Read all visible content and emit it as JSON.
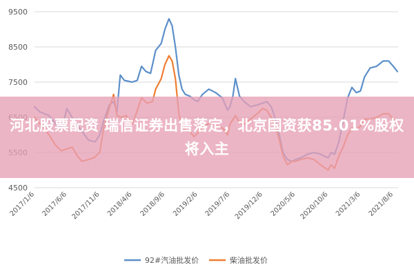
{
  "overlay": {
    "headline": "河北股票配资 瑞信证券出售落定，北京国资获85.01%股权将入主"
  },
  "chart_data": {
    "type": "line",
    "ylim": [
      4500,
      9500
    ],
    "y_ticks": [
      4500,
      5500,
      6500,
      7500,
      8500,
      9500
    ],
    "x_tick_labels": [
      "2017/1/6",
      "2017/6/6",
      "2017/11/6",
      "2018/4/6",
      "2018/9/6",
      "2019/2/6",
      "2019/7/6",
      "2019/12/6",
      "2020/5/6",
      "2020/10/6",
      "2021/3/6",
      "2021/8/6"
    ],
    "x_tick_times": [
      "2017-01-06",
      "2017-06-06",
      "2017-11-06",
      "2018-04-06",
      "2018-09-06",
      "2019-02-06",
      "2019-07-06",
      "2019-12-06",
      "2020-05-06",
      "2020-10-06",
      "2021-03-06",
      "2021-08-06"
    ],
    "grid": "horizontal",
    "legend_position": "bottom",
    "series": [
      {
        "name": "92#汽油批发价",
        "color": "#5b8fc9",
        "points": [
          [
            "2017-01-06",
            6800
          ],
          [
            "2017-02-01",
            6650
          ],
          [
            "2017-03-15",
            6550
          ],
          [
            "2017-04-15",
            6300
          ],
          [
            "2017-05-15",
            6200
          ],
          [
            "2017-06-06",
            6750
          ],
          [
            "2017-07-10",
            6400
          ],
          [
            "2017-08-15",
            6100
          ],
          [
            "2017-09-15",
            5850
          ],
          [
            "2017-10-15",
            5800
          ],
          [
            "2017-11-06",
            6000
          ],
          [
            "2017-11-25",
            6400
          ],
          [
            "2017-12-20",
            6850
          ],
          [
            "2018-01-10",
            6950
          ],
          [
            "2018-01-25",
            6650
          ],
          [
            "2018-02-10",
            7700
          ],
          [
            "2018-03-01",
            7550
          ],
          [
            "2018-04-06",
            7500
          ],
          [
            "2018-04-30",
            7550
          ],
          [
            "2018-05-20",
            7950
          ],
          [
            "2018-06-10",
            7800
          ],
          [
            "2018-07-01",
            7750
          ],
          [
            "2018-07-25",
            8400
          ],
          [
            "2018-08-20",
            8600
          ],
          [
            "2018-09-06",
            9000
          ],
          [
            "2018-09-25",
            9300
          ],
          [
            "2018-10-10",
            9100
          ],
          [
            "2018-10-25",
            8500
          ],
          [
            "2018-11-10",
            7700
          ],
          [
            "2018-11-25",
            7300
          ],
          [
            "2018-12-10",
            7150
          ],
          [
            "2019-01-01",
            7100
          ],
          [
            "2019-01-20",
            7000
          ],
          [
            "2019-02-06",
            6950
          ],
          [
            "2019-02-28",
            7150
          ],
          [
            "2019-03-30",
            7300
          ],
          [
            "2019-05-01",
            7200
          ],
          [
            "2019-06-01",
            7050
          ],
          [
            "2019-06-25",
            6700
          ],
          [
            "2019-07-06",
            6800
          ],
          [
            "2019-07-20",
            7100
          ],
          [
            "2019-08-01",
            7600
          ],
          [
            "2019-08-20",
            7100
          ],
          [
            "2019-09-10",
            6950
          ],
          [
            "2019-10-10",
            6800
          ],
          [
            "2019-11-10",
            6850
          ],
          [
            "2019-12-06",
            6900
          ],
          [
            "2019-12-25",
            6950
          ],
          [
            "2020-01-15",
            6800
          ],
          [
            "2020-02-01",
            6500
          ],
          [
            "2020-02-20",
            6050
          ],
          [
            "2020-03-10",
            5500
          ],
          [
            "2020-03-30",
            5300
          ],
          [
            "2020-04-20",
            5250
          ],
          [
            "2020-05-06",
            5300
          ],
          [
            "2020-06-01",
            5350
          ],
          [
            "2020-07-01",
            5450
          ],
          [
            "2020-08-01",
            5500
          ],
          [
            "2020-09-01",
            5450
          ],
          [
            "2020-10-06",
            5350
          ],
          [
            "2020-10-20",
            5500
          ],
          [
            "2020-11-05",
            5450
          ],
          [
            "2020-11-25",
            5800
          ],
          [
            "2020-12-15",
            6400
          ],
          [
            "2021-01-05",
            7050
          ],
          [
            "2021-01-25",
            7350
          ],
          [
            "2021-02-15",
            7200
          ],
          [
            "2021-03-06",
            7250
          ],
          [
            "2021-03-25",
            7650
          ],
          [
            "2021-04-20",
            7900
          ],
          [
            "2021-05-20",
            7950
          ],
          [
            "2021-06-20",
            8100
          ],
          [
            "2021-07-15",
            8100
          ],
          [
            "2021-08-06",
            7950
          ],
          [
            "2021-08-25",
            7800
          ]
        ]
      },
      {
        "name": "柴油批发价",
        "color": "#ef7d31",
        "points": [
          [
            "2017-01-06",
            6500
          ],
          [
            "2017-02-10",
            6250
          ],
          [
            "2017-03-15",
            6000
          ],
          [
            "2017-04-15",
            5700
          ],
          [
            "2017-05-10",
            5550
          ],
          [
            "2017-06-06",
            5600
          ],
          [
            "2017-07-01",
            5650
          ],
          [
            "2017-07-25",
            5400
          ],
          [
            "2017-08-15",
            5250
          ],
          [
            "2017-09-15",
            5300
          ],
          [
            "2017-10-10",
            5350
          ],
          [
            "2017-11-06",
            5500
          ],
          [
            "2017-11-25",
            6200
          ],
          [
            "2017-12-20",
            6750
          ],
          [
            "2018-01-10",
            7150
          ],
          [
            "2018-01-25",
            6550
          ],
          [
            "2018-02-15",
            6500
          ],
          [
            "2018-03-10",
            6550
          ],
          [
            "2018-04-06",
            6300
          ],
          [
            "2018-04-25",
            6600
          ],
          [
            "2018-05-20",
            7050
          ],
          [
            "2018-06-15",
            6900
          ],
          [
            "2018-07-10",
            6950
          ],
          [
            "2018-07-25",
            7300
          ],
          [
            "2018-08-20",
            7600
          ],
          [
            "2018-09-06",
            8000
          ],
          [
            "2018-09-25",
            8250
          ],
          [
            "2018-10-10",
            8100
          ],
          [
            "2018-10-25",
            7600
          ],
          [
            "2018-11-10",
            6600
          ],
          [
            "2018-11-25",
            6200
          ],
          [
            "2018-12-10",
            6150
          ],
          [
            "2019-01-01",
            6100
          ],
          [
            "2019-01-20",
            5950
          ],
          [
            "2019-02-06",
            6050
          ],
          [
            "2019-03-05",
            6250
          ],
          [
            "2019-04-10",
            6350
          ],
          [
            "2019-05-10",
            6250
          ],
          [
            "2019-06-01",
            6200
          ],
          [
            "2019-06-25",
            6000
          ],
          [
            "2019-07-06",
            6300
          ],
          [
            "2019-08-01",
            6550
          ],
          [
            "2019-08-20",
            6350
          ],
          [
            "2019-09-10",
            6300
          ],
          [
            "2019-10-10",
            6450
          ],
          [
            "2019-11-10",
            6600
          ],
          [
            "2019-12-06",
            6750
          ],
          [
            "2019-12-25",
            6700
          ],
          [
            "2020-01-15",
            6500
          ],
          [
            "2020-02-05",
            6200
          ],
          [
            "2020-02-20",
            5900
          ],
          [
            "2020-03-10",
            5400
          ],
          [
            "2020-03-30",
            5150
          ],
          [
            "2020-04-20",
            5250
          ],
          [
            "2020-05-06",
            5250
          ],
          [
            "2020-06-01",
            5300
          ],
          [
            "2020-07-01",
            5350
          ],
          [
            "2020-08-01",
            5300
          ],
          [
            "2020-09-01",
            5150
          ],
          [
            "2020-10-06",
            5000
          ],
          [
            "2020-10-20",
            5150
          ],
          [
            "2020-11-05",
            5050
          ],
          [
            "2020-11-25",
            5400
          ],
          [
            "2020-12-15",
            5650
          ],
          [
            "2021-01-05",
            6000
          ],
          [
            "2021-01-25",
            6200
          ],
          [
            "2021-02-15",
            6150
          ],
          [
            "2021-03-06",
            6250
          ],
          [
            "2021-03-25",
            6450
          ],
          [
            "2021-04-20",
            6450
          ],
          [
            "2021-05-20",
            6500
          ],
          [
            "2021-06-20",
            6600
          ],
          [
            "2021-07-15",
            6600
          ],
          [
            "2021-08-06",
            6450
          ],
          [
            "2021-08-25",
            6400
          ]
        ]
      }
    ]
  }
}
